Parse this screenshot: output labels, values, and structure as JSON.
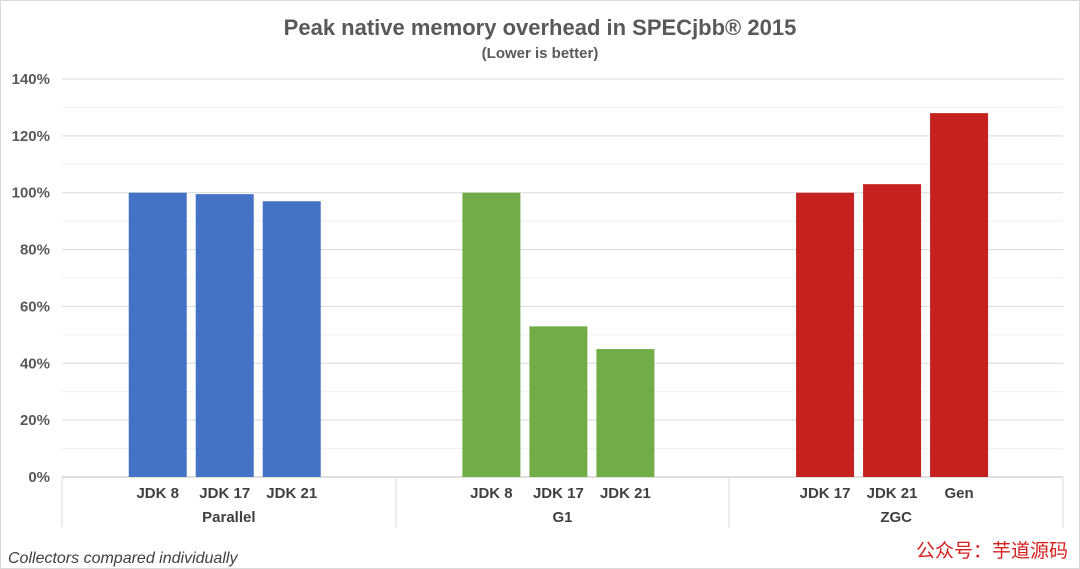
{
  "chart_data": {
    "type": "bar",
    "title": "Peak native memory overhead in SPECjbb® 2015",
    "subtitle": "(Lower is better)",
    "ylabel": "",
    "xlabel": "",
    "ylim": [
      0,
      140
    ],
    "y_ticks": [
      "0%",
      "20%",
      "40%",
      "60%",
      "80%",
      "100%",
      "120%",
      "140%"
    ],
    "y_unit": "%",
    "grid": true,
    "groups": [
      {
        "name": "Parallel",
        "color": "#4472c4",
        "bars": [
          {
            "label": "JDK 8",
            "value": 100
          },
          {
            "label": "JDK 17",
            "value": 99.5
          },
          {
            "label": "JDK 21",
            "value": 97
          }
        ]
      },
      {
        "name": "G1",
        "color": "#70ad47",
        "bars": [
          {
            "label": "JDK 8",
            "value": 100
          },
          {
            "label": "JDK 17",
            "value": 53
          },
          {
            "label": "JDK 21",
            "value": 45
          }
        ]
      },
      {
        "name": "ZGC",
        "color": "#c5221f",
        "bars": [
          {
            "label": "JDK 17",
            "value": 100
          },
          {
            "label": "JDK 21",
            "value": 103
          },
          {
            "label": "Gen",
            "value": 128
          }
        ]
      }
    ]
  },
  "footnote": "Collectors compared individually",
  "watermark": "公众号：芋道源码"
}
